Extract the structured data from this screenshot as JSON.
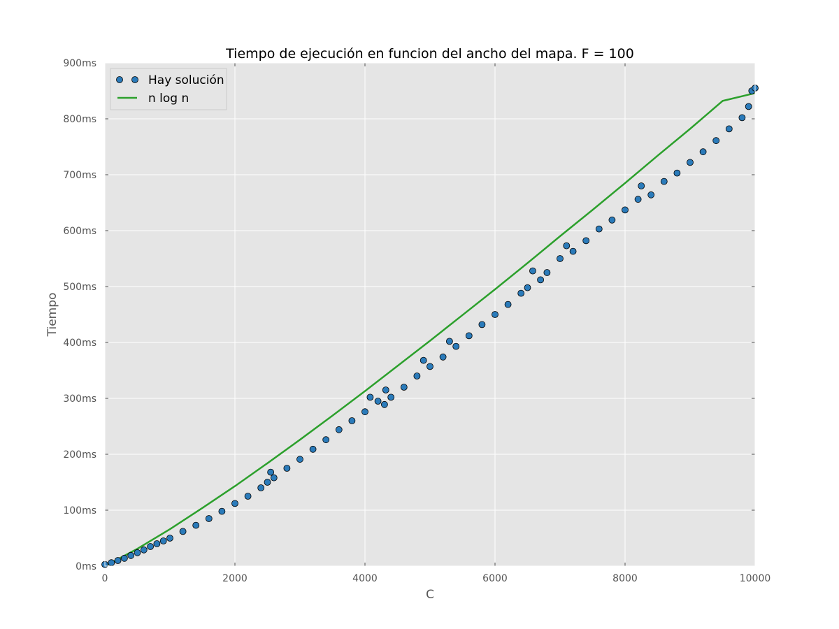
{
  "chart_data": {
    "type": "scatter",
    "title": "Tiempo de ejecución en funcion del ancho del mapa. F = 100",
    "xlabel": "C",
    "ylabel": "Tiempo",
    "xlim": [
      0,
      10000
    ],
    "ylim": [
      0,
      900
    ],
    "x_ticks": [
      0,
      2000,
      4000,
      6000,
      8000,
      10000
    ],
    "x_tick_labels": [
      "0",
      "2000",
      "4000",
      "6000",
      "8000",
      "10000"
    ],
    "y_ticks": [
      0,
      100,
      200,
      300,
      400,
      500,
      600,
      700,
      800,
      900
    ],
    "y_tick_labels": [
      "0ms",
      "100ms",
      "200ms",
      "300ms",
      "400ms",
      "500ms",
      "600ms",
      "700ms",
      "800ms",
      "900ms"
    ],
    "grid": true,
    "background": "#e5e5e5",
    "legend_position": "top-left",
    "series": [
      {
        "name": "Hay solución",
        "kind": "scatter",
        "color": "#2b7bba",
        "edge_color": "#000000",
        "x": [
          0,
          100,
          200,
          300,
          400,
          500,
          600,
          700,
          800,
          900,
          1000,
          1200,
          1400,
          1600,
          1800,
          2000,
          2200,
          2400,
          2500,
          2550,
          2600,
          2800,
          3000,
          3200,
          3400,
          3600,
          3800,
          4000,
          4080,
          4200,
          4300,
          4320,
          4400,
          4600,
          4800,
          4900,
          5000,
          5200,
          5300,
          5400,
          5600,
          5800,
          6000,
          6200,
          6400,
          6500,
          6580,
          6700,
          6800,
          7000,
          7100,
          7200,
          7400,
          7600,
          7800,
          8000,
          8200,
          8250,
          8400,
          8600,
          8800,
          9000,
          9200,
          9400,
          9600,
          9800,
          9900,
          9950,
          10000
        ],
        "y": [
          3,
          6,
          10,
          14,
          19,
          24,
          29,
          35,
          40,
          45,
          50,
          62,
          73,
          85,
          98,
          112,
          125,
          140,
          150,
          168,
          158,
          175,
          191,
          209,
          226,
          244,
          260,
          276,
          302,
          295,
          289,
          315,
          302,
          320,
          340,
          368,
          357,
          374,
          402,
          393,
          412,
          432,
          450,
          468,
          488,
          498,
          528,
          512,
          525,
          550,
          573,
          563,
          582,
          603,
          619,
          637,
          656,
          680,
          664,
          688,
          703,
          722,
          741,
          761,
          782,
          802,
          822,
          850,
          855
        ]
      },
      {
        "name": "n log n",
        "kind": "line",
        "color": "#2ca02c",
        "x": [
          0,
          500,
          1000,
          1500,
          2000,
          2500,
          3000,
          3500,
          4000,
          4500,
          5000,
          5500,
          6000,
          6500,
          7000,
          7500,
          8000,
          8500,
          9000,
          9500,
          10000
        ],
        "y": [
          0,
          31,
          66,
          104,
          143,
          184,
          226,
          269,
          313,
          358,
          403,
          449,
          495,
          542,
          590,
          637,
          685,
          734,
          782,
          832,
          846
        ]
      }
    ]
  }
}
